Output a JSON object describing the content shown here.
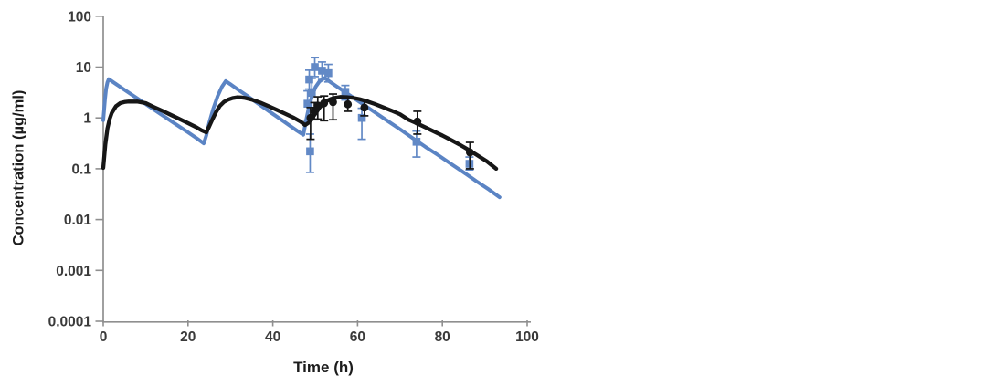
{
  "chart_data": {
    "type": "line",
    "title": "",
    "xlabel": "Time (h)",
    "ylabel": "Concentration (µg/ml)",
    "x_axis": {
      "min": 0,
      "max": 100,
      "ticks": [
        0,
        20,
        40,
        60,
        80,
        100
      ]
    },
    "y_axis": {
      "scale": "log",
      "min": 0.0001,
      "max": 100,
      "tick_labels": [
        "100",
        "10",
        "1",
        "0.1",
        "0.01",
        "0.001",
        "0.0001"
      ]
    },
    "grid": false,
    "legend": "none",
    "colors": {
      "blue_line": "#5b84c4",
      "blue_marker": "#6289c6",
      "black": "#161616",
      "axis": "#8f8f8f",
      "tick_text": "#3a3a3a"
    },
    "series": [
      {
        "name": "blue-model-curve",
        "kind": "line",
        "color": "#5b84c4",
        "stroke_width": 4,
        "points": [
          [
            0,
            0.9
          ],
          [
            0.4,
            2.3
          ],
          [
            0.7,
            3.8
          ],
          [
            1.0,
            5.0
          ],
          [
            1.3,
            5.8
          ],
          [
            2,
            5.3
          ],
          [
            3.5,
            4.35
          ],
          [
            5,
            3.57
          ],
          [
            8,
            2.43
          ],
          [
            11,
            1.65
          ],
          [
            14,
            1.12
          ],
          [
            17,
            0.76
          ],
          [
            20,
            0.52
          ],
          [
            22,
            0.4
          ],
          [
            23.7,
            0.316
          ],
          [
            24.3,
            0.45
          ],
          [
            25,
            0.8
          ],
          [
            26,
            1.55
          ],
          [
            27,
            2.7
          ],
          [
            28,
            4.1
          ],
          [
            28.9,
            5.3
          ],
          [
            30,
            4.6
          ],
          [
            32,
            3.5
          ],
          [
            34,
            2.7
          ],
          [
            36,
            2.05
          ],
          [
            38,
            1.57
          ],
          [
            40,
            1.2
          ],
          [
            42,
            0.92
          ],
          [
            44,
            0.7
          ],
          [
            45.7,
            0.56
          ],
          [
            47.2,
            0.465
          ],
          [
            47.8,
            0.85
          ],
          [
            48.5,
            1.6
          ],
          [
            49.3,
            2.8
          ],
          [
            50.1,
            4.1
          ],
          [
            51,
            5.2
          ],
          [
            52.2,
            6.1
          ],
          [
            55,
            4.2
          ],
          [
            58,
            2.85
          ],
          [
            61,
            1.93
          ],
          [
            64,
            1.3
          ],
          [
            67,
            0.88
          ],
          [
            70,
            0.6
          ],
          [
            73,
            0.4
          ],
          [
            76,
            0.27
          ],
          [
            79,
            0.185
          ],
          [
            82,
            0.125
          ],
          [
            85,
            0.085
          ],
          [
            88,
            0.057
          ],
          [
            91,
            0.039
          ],
          [
            93.5,
            0.0275
          ]
        ]
      },
      {
        "name": "blue-observed-squares",
        "kind": "scatter",
        "marker": "square",
        "color": "#6289c6",
        "points_tchl": [
          [
            48.2,
            1.9,
            0.9,
            3.4
          ],
          [
            48.6,
            5.7,
            3.7,
            8.7
          ],
          [
            48.8,
            0.22,
            0.085,
            0.48
          ],
          [
            49.2,
            3.1,
            1.6,
            6.0
          ],
          [
            49.9,
            10.0,
            6.5,
            15.3
          ],
          [
            51.6,
            8.5,
            5.7,
            12.6
          ],
          [
            53.1,
            7.6,
            5.1,
            11.3
          ],
          [
            57.1,
            3.25,
            2.25,
            4.35
          ],
          [
            61.0,
            1.0,
            0.38,
            1.55
          ],
          [
            73.9,
            0.34,
            0.17,
            0.55
          ],
          [
            86.4,
            0.125,
            0.095,
            0.17
          ]
        ]
      },
      {
        "name": "black-model-curve",
        "kind": "line",
        "color": "#161616",
        "stroke_width": 4.3,
        "points": [
          [
            0,
            0.104
          ],
          [
            0.5,
            0.3
          ],
          [
            1,
            0.62
          ],
          [
            1.5,
            0.95
          ],
          [
            2,
            1.25
          ],
          [
            3,
            1.7
          ],
          [
            4,
            1.95
          ],
          [
            5,
            2.05
          ],
          [
            6,
            2.1
          ],
          [
            8,
            2.1
          ],
          [
            10,
            1.95
          ],
          [
            12,
            1.63
          ],
          [
            14,
            1.37
          ],
          [
            16,
            1.14
          ],
          [
            18,
            0.95
          ],
          [
            20,
            0.79
          ],
          [
            22,
            0.65
          ],
          [
            23.2,
            0.57
          ],
          [
            24.3,
            0.52
          ],
          [
            25,
            0.68
          ],
          [
            25.8,
            0.95
          ],
          [
            26.6,
            1.3
          ],
          [
            27.5,
            1.72
          ],
          [
            28.5,
            2.07
          ],
          [
            29.5,
            2.3
          ],
          [
            30.5,
            2.45
          ],
          [
            31.5,
            2.53
          ],
          [
            32.5,
            2.52
          ],
          [
            33.5,
            2.46
          ],
          [
            35,
            2.3
          ],
          [
            37,
            2.0
          ],
          [
            39,
            1.7
          ],
          [
            41,
            1.43
          ],
          [
            43,
            1.2
          ],
          [
            45,
            1.0
          ],
          [
            46.5,
            0.85
          ],
          [
            47.6,
            0.72
          ],
          [
            48.4,
            0.8
          ],
          [
            49,
            0.92
          ],
          [
            49.6,
            1.08
          ],
          [
            50.3,
            1.3
          ],
          [
            51,
            1.58
          ],
          [
            51.8,
            1.88
          ],
          [
            52.7,
            2.15
          ],
          [
            53.7,
            2.35
          ],
          [
            54.7,
            2.48
          ],
          [
            56,
            2.58
          ],
          [
            57.5,
            2.56
          ],
          [
            59,
            2.47
          ],
          [
            60.5,
            2.33
          ],
          [
            62,
            2.15
          ],
          [
            64,
            1.88
          ],
          [
            66,
            1.62
          ],
          [
            68,
            1.39
          ],
          [
            70,
            1.18
          ],
          [
            72,
            0.92
          ],
          [
            74,
            0.78
          ],
          [
            76,
            0.65
          ],
          [
            78,
            0.54
          ],
          [
            80,
            0.45
          ],
          [
            82,
            0.37
          ],
          [
            84,
            0.3
          ],
          [
            86,
            0.24
          ],
          [
            88,
            0.19
          ],
          [
            90.5,
            0.14
          ],
          [
            92.7,
            0.1
          ]
        ]
      },
      {
        "name": "black-observed-circles",
        "kind": "scatter",
        "marker": "circle",
        "color": "#161616",
        "points_tchl": [
          [
            48.9,
            1.0,
            0.38,
            1.6
          ],
          [
            49.8,
            1.35,
            0.92,
            2.0
          ],
          [
            50.6,
            1.75,
            0.95,
            2.6
          ],
          [
            52.1,
            1.95,
            0.88,
            2.7
          ],
          [
            54.2,
            2.05,
            0.92,
            2.95
          ],
          [
            57.7,
            1.85,
            1.35,
            2.5
          ],
          [
            61.6,
            1.6,
            1.1,
            2.3
          ],
          [
            74.1,
            0.85,
            0.48,
            1.35
          ],
          [
            86.5,
            0.21,
            0.1,
            0.33
          ]
        ]
      }
    ]
  }
}
